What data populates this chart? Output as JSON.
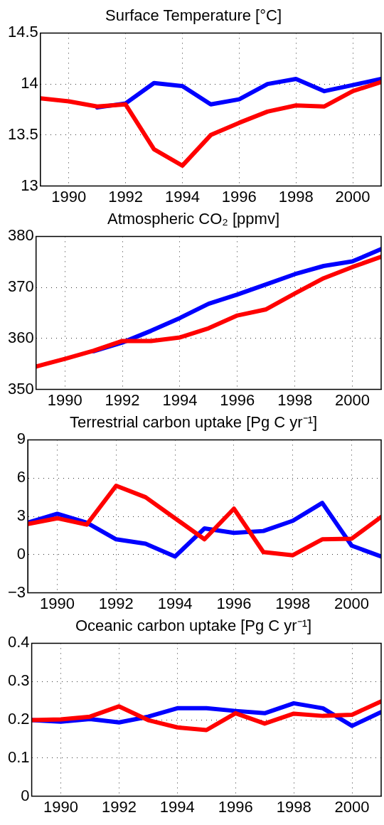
{
  "chart_data": [
    {
      "type": "line",
      "title": "Surface Temperature [°C]",
      "x": [
        1989,
        1990,
        1991,
        1992,
        1993,
        1994,
        1995,
        1996,
        1997,
        1998,
        1999,
        2000,
        2001
      ],
      "xlim": [
        1989,
        2001
      ],
      "xticks": [
        1990,
        1992,
        1994,
        1996,
        1998,
        2000
      ],
      "ylim": [
        13,
        14.5
      ],
      "yticks": [
        13,
        13.5,
        14,
        14.5
      ],
      "grid": true,
      "series": [
        {
          "color": "#0000ff",
          "values": [
            null,
            null,
            13.77,
            13.81,
            14.01,
            13.98,
            13.8,
            13.85,
            14.0,
            14.05,
            13.93,
            13.99,
            14.05
          ]
        },
        {
          "color": "#ff0000",
          "values": [
            13.86,
            13.83,
            13.78,
            13.8,
            13.36,
            13.2,
            13.5,
            13.62,
            13.73,
            13.79,
            13.78,
            13.93,
            14.02
          ]
        }
      ]
    },
    {
      "type": "line",
      "title": "Atmospheric CO₂ [ppmv]",
      "x": [
        1989,
        1990,
        1991,
        1992,
        1993,
        1994,
        1995,
        1996,
        1997,
        1998,
        1999,
        2000,
        2001
      ],
      "xlim": [
        1989,
        2001
      ],
      "xticks": [
        1990,
        1992,
        1994,
        1996,
        1998,
        2000
      ],
      "ylim": [
        350,
        380
      ],
      "yticks": [
        350,
        360,
        370,
        380
      ],
      "grid": true,
      "series": [
        {
          "color": "#0000ff",
          "values": [
            null,
            null,
            357.5,
            359.2,
            361.5,
            364,
            366.8,
            368.6,
            370.6,
            372.6,
            374.2,
            375.1,
            377.5
          ]
        },
        {
          "color": "#ff0000",
          "values": [
            354.5,
            356,
            357.6,
            359.5,
            359.5,
            360.2,
            362,
            364.5,
            365.7,
            368.8,
            371.8,
            374,
            376
          ]
        }
      ]
    },
    {
      "type": "line",
      "title": "Terrestrial carbon uptake [Pg C yr⁻¹]",
      "x": [
        1989,
        1990,
        1991,
        1992,
        1993,
        1994,
        1995,
        1996,
        1997,
        1998,
        1999,
        2000,
        2001
      ],
      "xlim": [
        1989,
        2001
      ],
      "xticks": [
        1990,
        1992,
        1994,
        1996,
        1998,
        2000
      ],
      "ylim": [
        -3,
        9
      ],
      "yticks": [
        {
          "value": -3,
          "label": "−3"
        },
        0,
        3,
        6,
        9
      ],
      "grid": true,
      "series": [
        {
          "color": "#0000ff",
          "values": [
            2.5,
            3.2,
            2.5,
            1.2,
            0.85,
            -0.15,
            2.05,
            1.7,
            1.85,
            2.65,
            4.05,
            0.7,
            -0.15
          ]
        },
        {
          "color": "#ff0000",
          "values": [
            2.4,
            2.85,
            2.35,
            5.4,
            4.5,
            2.85,
            1.2,
            3.6,
            0.2,
            -0.05,
            1.2,
            1.25,
            2.95
          ]
        }
      ]
    },
    {
      "type": "line",
      "title": "Oceanic carbon uptake [Pg C yr⁻¹]",
      "x": [
        1989,
        1990,
        1991,
        1992,
        1993,
        1994,
        1995,
        1996,
        1997,
        1998,
        1999,
        2000,
        2001
      ],
      "xlim": [
        1989,
        2001
      ],
      "xticks": [
        1990,
        1992,
        1994,
        1996,
        1998,
        2000
      ],
      "ylim": [
        0,
        0.4
      ],
      "yticks": [
        0,
        0.1,
        0.2,
        0.3,
        0.4
      ],
      "grid": true,
      "series": [
        {
          "color": "#0000ff",
          "values": [
            0.199,
            0.195,
            0.202,
            0.193,
            0.208,
            0.23,
            0.23,
            0.223,
            0.217,
            0.243,
            0.23,
            0.184,
            0.22
          ]
        },
        {
          "color": "#ff0000",
          "values": [
            0.199,
            0.201,
            0.208,
            0.235,
            0.199,
            0.18,
            0.173,
            0.217,
            0.19,
            0.216,
            0.21,
            0.213,
            0.248
          ]
        }
      ]
    }
  ]
}
